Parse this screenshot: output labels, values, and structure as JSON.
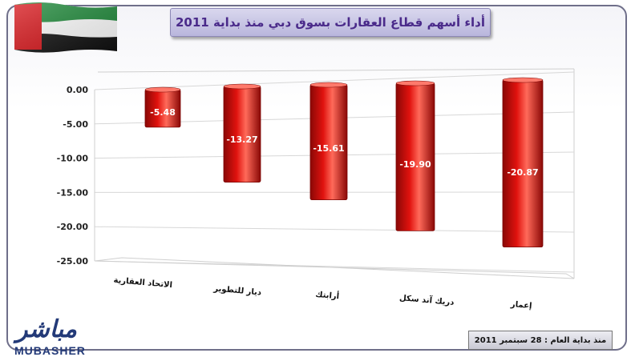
{
  "title": "أداء أسهم قطاع العقارات بسوق دبي منذ بداية 2011",
  "date_note": "منذ بداية العام : 28 سبتمبر 2011",
  "logo": {
    "arabic": "مباشر",
    "english": "MUBASHER"
  },
  "colors": {
    "bar": "#e0120e",
    "bar_dark": "#8a0806",
    "bar_light": "#ff6a5a",
    "title_text": "#4a2a8a"
  },
  "chart_data": {
    "type": "bar",
    "categories": [
      "الاتحاد العقارية",
      "ديار للتطوير",
      "أرابتك",
      "دريك آند سكل",
      "إعمار"
    ],
    "values": [
      -5.48,
      -13.27,
      -15.61,
      -19.9,
      -20.87
    ],
    "data_labels": [
      "-5.48",
      "-13.27",
      "-15.61",
      "-19.90",
      "-20.87"
    ],
    "yticks": [
      "0.00",
      "-5.00",
      "-10.00",
      "-15.00",
      "-20.00",
      "-25.00"
    ],
    "ylim": [
      -25,
      0
    ],
    "grid": true,
    "xlabel": "",
    "ylabel": ""
  }
}
